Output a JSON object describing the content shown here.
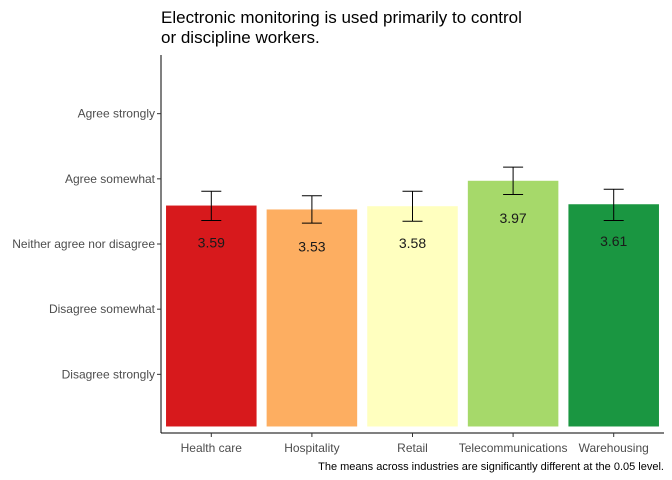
{
  "chart_data": {
    "type": "bar",
    "title": "Electronic monitoring is used primarily to control or discipline workers.",
    "title_lines": [
      "Electronic monitoring is used primarily to control",
      "or discipline workers."
    ],
    "categories": [
      "Health care",
      "Hospitality",
      "Retail",
      "Telecommunications",
      "Warehousing"
    ],
    "values": [
      3.59,
      3.53,
      3.58,
      3.97,
      3.61
    ],
    "value_labels": [
      "3.59",
      "3.53",
      "3.58",
      "3.97",
      "3.61"
    ],
    "error_low": [
      3.36,
      3.32,
      3.35,
      3.76,
      3.36
    ],
    "error_high": [
      3.81,
      3.74,
      3.81,
      4.18,
      3.84
    ],
    "colors": [
      "#d7191c",
      "#fdae61",
      "#ffffbf",
      "#a6d96a",
      "#1a9641"
    ],
    "y_ticks": [
      1,
      2,
      3,
      4,
      5
    ],
    "y_tick_labels": [
      "Disagree strongly",
      "Disagree somewhat",
      "Neither agree nor disagree",
      "Agree somewhat",
      "Agree strongly"
    ],
    "ylim": [
      0.1,
      5.9
    ],
    "bar_base": 0.2,
    "caption": "The means across industries are significantly different at the 0.05 level.",
    "xlabel": "",
    "ylabel": "",
    "grid": false,
    "legend": "none"
  }
}
